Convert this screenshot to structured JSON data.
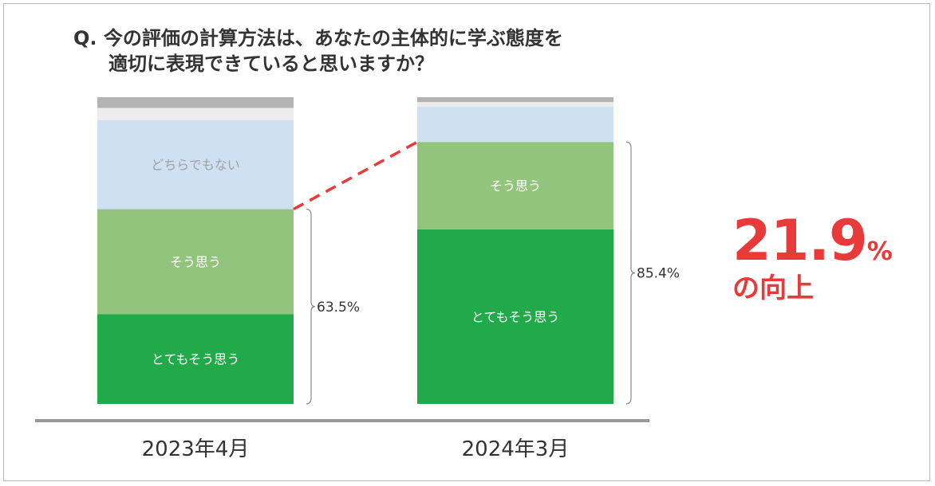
{
  "title": {
    "line1": "Q. 今の評価の計算方法は、あなたの主体的に学ぶ態度を",
    "line2": "適切に表現できていると思いますか？"
  },
  "colors": {
    "strongly_agree": "#22aa4a",
    "agree": "#93c47d",
    "neutral": "#cfe0f3",
    "disagree": "#ececec",
    "strongly_disagree": "#b3b3b3",
    "dashed_line": "#e83a3a",
    "highlight": "#e83a3a"
  },
  "callout": {
    "value": "21.9",
    "unit": "%",
    "text": "の向上"
  },
  "chart_data": {
    "type": "bar",
    "stacked": true,
    "categories": [
      "2023年4月",
      "2024年3月"
    ],
    "ylim": [
      0,
      100
    ],
    "series": [
      {
        "name": "とてもそう思う",
        "values": [
          29.3,
          56.9
        ],
        "color_key": "strongly_agree",
        "label_color": "#ffffff"
      },
      {
        "name": "そう思う",
        "values": [
          34.2,
          28.5
        ],
        "color_key": "agree",
        "label_color": "#ffffff"
      },
      {
        "name": "どちらでもない",
        "values": [
          29.0,
          11.5
        ],
        "color_key": "neutral",
        "label_color": "#a0a0a0"
      },
      {
        "values": [
          4.0,
          1.5
        ],
        "color_key": "disagree"
      },
      {
        "values": [
          3.5,
          1.6
        ],
        "color_key": "strongly_disagree"
      }
    ],
    "segment_labels": [
      [
        "とてもそう思う",
        "そう思う",
        "どちらでもない",
        "",
        ""
      ],
      [
        "とてもそう思う",
        "そう思う",
        "",
        "",
        ""
      ]
    ],
    "brace_totals": [
      "63.5%",
      "85.4%"
    ],
    "improvement": "21.9%"
  }
}
